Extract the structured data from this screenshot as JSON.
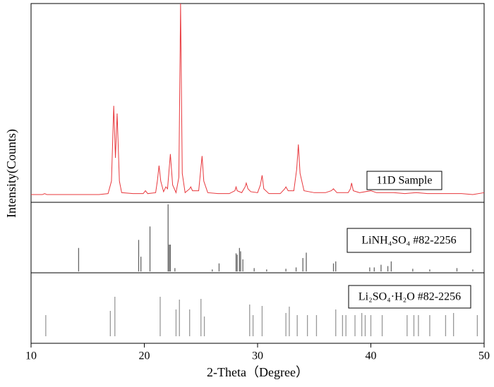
{
  "chart_data": [
    {
      "type": "line",
      "y_label": "Intensity(Counts)",
      "xlim": [
        10,
        50
      ],
      "ylim": [
        -3,
        100
      ],
      "x": [
        10,
        11,
        11.2,
        11.4,
        12,
        13,
        14,
        15,
        16,
        16.8,
        17.1,
        17.3,
        17.45,
        17.6,
        17.8,
        18,
        19,
        19.9,
        20.1,
        20.3,
        21,
        21.15,
        21.3,
        21.45,
        21.7,
        21.9,
        22.05,
        22.3,
        22.5,
        22.8,
        23.05,
        23.2,
        23.35,
        23.6,
        24,
        24.1,
        24.25,
        24.8,
        24.95,
        25.1,
        25.25,
        25.6,
        26.5,
        27.5,
        28,
        28.1,
        28.2,
        28.6,
        28.9,
        29,
        29.15,
        29.4,
        30,
        30.25,
        30.4,
        30.55,
        31,
        32,
        32.4,
        32.5,
        32.7,
        33.2,
        33.45,
        33.6,
        33.75,
        34.1,
        35,
        36,
        36.5,
        36.7,
        37,
        38,
        38.2,
        38.3,
        38.45,
        39,
        40,
        40.5,
        41,
        42,
        43,
        44,
        45,
        46,
        47,
        48,
        49,
        50
      ],
      "series": [
        {
          "name": "11D Sample",
          "color": "#e8383d",
          "values": [
            1,
            1,
            1.5,
            1,
            1,
            1,
            1,
            1,
            1,
            1.5,
            8,
            47,
            20,
            43,
            8,
            2,
            1.5,
            1.5,
            3,
            1.5,
            2,
            8,
            16,
            8,
            2.5,
            5,
            4,
            22,
            6,
            2,
            10,
            100,
            12,
            2,
            4,
            5,
            3,
            3,
            12,
            21,
            8,
            2,
            1.5,
            1.5,
            3,
            5,
            3,
            2,
            5,
            7,
            4,
            2.5,
            2,
            6,
            11,
            4,
            1.5,
            1.5,
            4,
            5,
            3,
            3,
            14,
            27,
            12,
            3,
            2,
            2,
            3,
            4,
            2,
            2,
            4,
            7,
            3,
            2,
            3,
            2,
            2,
            2,
            1.5,
            2,
            1.5,
            1.5,
            1.5,
            1.5,
            1,
            2
          ]
        }
      ]
    },
    {
      "type": "stick",
      "xlim": [
        10,
        50
      ],
      "ylim": [
        -2,
        103
      ],
      "x": [
        14.2,
        19.5,
        19.7,
        20.5,
        22.1,
        22.2,
        22.3,
        22.7,
        26.0,
        26.6,
        28.1,
        28.2,
        28.4,
        28.5,
        28.7,
        29.7,
        30.8,
        32.5,
        33.4,
        34.0,
        34.3,
        36.7,
        36.9,
        39.9,
        40.3,
        40.9,
        41.5,
        41.8,
        43.7,
        45.2,
        47.6,
        49.0
      ],
      "series": [
        {
          "name": "LiNH₄SO₄ #82-2256",
          "color": "#666666",
          "values": [
            35,
            47,
            22,
            67,
            100,
            40,
            40,
            5,
            3,
            12,
            27,
            25,
            35,
            30,
            18,
            5,
            3,
            4,
            6,
            20,
            28,
            12,
            15,
            6,
            6,
            10,
            8,
            15,
            4,
            3,
            5,
            3
          ]
        }
      ]
    },
    {
      "type": "stick",
      "x_label": "2-Theta（Degree）",
      "xlim": [
        10,
        50
      ],
      "xticks": [
        10,
        20,
        30,
        40,
        50
      ],
      "ylim": [
        -10,
        90
      ],
      "x": [
        11.3,
        17.0,
        17.4,
        21.4,
        22.8,
        23.1,
        24.0,
        25.0,
        25.3,
        29.3,
        29.6,
        30.4,
        32.5,
        32.8,
        33.5,
        34.4,
        35.2,
        36.9,
        37.5,
        37.8,
        38.6,
        39.2,
        39.5,
        40.0,
        41.0,
        43.2,
        43.8,
        44.2,
        45.2,
        46.6,
        47.3,
        49.4
      ],
      "series": [
        {
          "name": "Li₂SO₄·H₂O #82-2256",
          "color": "#999999",
          "values": [
            30,
            36,
            56,
            56,
            38,
            52,
            38,
            53,
            28,
            45,
            30,
            43,
            33,
            42,
            30,
            30,
            30,
            38,
            30,
            30,
            30,
            33,
            30,
            30,
            30,
            30,
            30,
            30,
            30,
            30,
            33,
            30
          ]
        }
      ]
    }
  ]
}
